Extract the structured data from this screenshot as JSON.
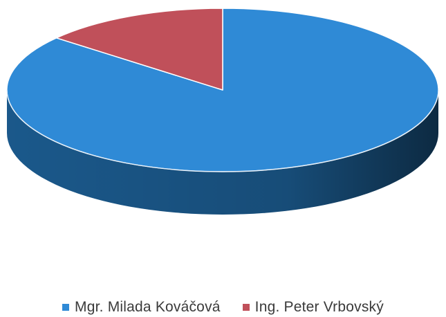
{
  "chart_data": {
    "type": "pie",
    "style": "3d",
    "title": "",
    "categories": [
      "Mgr. Milada Kováčová",
      "Ing. Peter Vrbovský"
    ],
    "values": [
      86,
      14
    ],
    "colors": [
      "#2f8ad6",
      "#c0505a"
    ],
    "side_colors": [
      "#1c5d92",
      "#7f3035"
    ],
    "legend": {
      "placement": "bottom",
      "entries": [
        {
          "label": "Mgr. Milada Kováčová",
          "color": "#2f8ad6"
        },
        {
          "label": "Ing. Peter Vrbovský",
          "color": "#c0505a"
        }
      ]
    }
  }
}
